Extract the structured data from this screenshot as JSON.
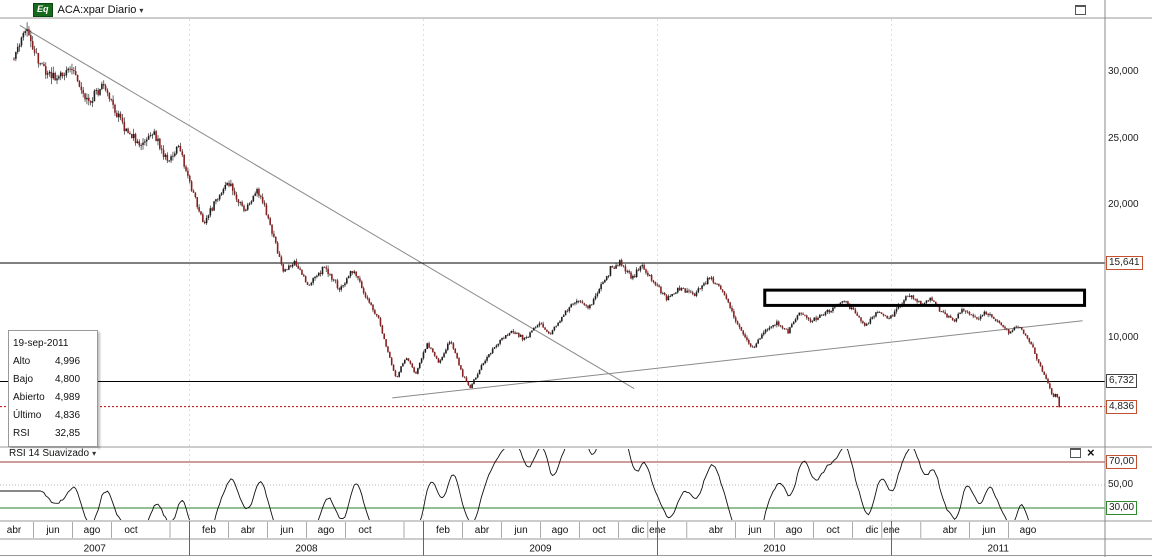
{
  "header": {
    "badge": "Eq",
    "symbol_label": "ACA:xpar Diario"
  },
  "icons": {
    "caret": "▾",
    "close": "×"
  },
  "tooltip": {
    "date": "19-sep-2011",
    "rows": [
      {
        "label": "Alto",
        "value": "4,996"
      },
      {
        "label": "Bajo",
        "value": "4,800"
      },
      {
        "label": "Abierto",
        "value": "4,989"
      },
      {
        "label": "Último",
        "value": "4,836"
      },
      {
        "label": "RSI",
        "value": "32,85"
      }
    ]
  },
  "rsi_panel": {
    "title": "RSI 14 Suavizado"
  },
  "price_axis": {
    "labels": [
      {
        "text": "30,000",
        "value": 30,
        "panel": "price",
        "style": "plain"
      },
      {
        "text": "25,000",
        "value": 25,
        "panel": "price",
        "style": "plain"
      },
      {
        "text": "20,000",
        "value": 20,
        "panel": "price",
        "style": "plain"
      },
      {
        "text": "15,641",
        "value": 15.641,
        "panel": "price",
        "style": "box-red"
      },
      {
        "text": "10,000",
        "value": 10,
        "panel": "price",
        "style": "plain"
      },
      {
        "text": "6,732",
        "value": 6.732,
        "panel": "price",
        "style": "box-black"
      },
      {
        "text": "4,836",
        "value": 4.836,
        "panel": "price",
        "style": "box-red"
      },
      {
        "text": "70,00",
        "value": 70,
        "panel": "rsi",
        "style": "box-red"
      },
      {
        "text": "50,00",
        "value": 50,
        "panel": "rsi",
        "style": "plain"
      },
      {
        "text": "30,00",
        "value": 30,
        "panel": "rsi",
        "style": "box-green"
      }
    ]
  },
  "x_axis": {
    "months": [
      {
        "m": 0,
        "label": "abr"
      },
      {
        "m": 2,
        "label": "jun"
      },
      {
        "m": 4,
        "label": "ago"
      },
      {
        "m": 6,
        "label": "oct"
      },
      {
        "m": 10,
        "label": "feb"
      },
      {
        "m": 12,
        "label": "abr"
      },
      {
        "m": 14,
        "label": "jun"
      },
      {
        "m": 16,
        "label": "ago"
      },
      {
        "m": 18,
        "label": "oct"
      },
      {
        "m": 22,
        "label": "feb"
      },
      {
        "m": 24,
        "label": "abr"
      },
      {
        "m": 26,
        "label": "jun"
      },
      {
        "m": 28,
        "label": "ago"
      },
      {
        "m": 30,
        "label": "oct"
      },
      {
        "m": 32,
        "label": "dic"
      },
      {
        "m": 33,
        "label": "ene"
      },
      {
        "m": 36,
        "label": "abr"
      },
      {
        "m": 38,
        "label": "jun"
      },
      {
        "m": 40,
        "label": "ago"
      },
      {
        "m": 42,
        "label": "oct"
      },
      {
        "m": 44,
        "label": "dic"
      },
      {
        "m": 45,
        "label": "ene"
      },
      {
        "m": 48,
        "label": "abr"
      },
      {
        "m": 50,
        "label": "jun"
      },
      {
        "m": 52,
        "label": "ago"
      }
    ],
    "years": [
      "2007",
      "2008",
      "2009",
      "2010",
      "2011"
    ]
  },
  "chart_data": {
    "type": "candlestick",
    "title": "ACA:xpar Diario",
    "x_unit": "months since abr-2007",
    "m_max": 53.6,
    "ylim": [
      2.2,
      34
    ],
    "visible_range": {
      "start": "abr 2007",
      "end": "19-sep-2011"
    },
    "price_anchors": [
      [
        0,
        31
      ],
      [
        0.5,
        33.3
      ],
      [
        1.2,
        30.8
      ],
      [
        2.2,
        29.2
      ],
      [
        3,
        30.4
      ],
      [
        3.8,
        27.6
      ],
      [
        4.6,
        29
      ],
      [
        5.5,
        26.2
      ],
      [
        6.5,
        24.4
      ],
      [
        7.1,
        25.6
      ],
      [
        7.9,
        23.2
      ],
      [
        8.4,
        24.4
      ],
      [
        9.2,
        20.8
      ],
      [
        9.7,
        18.6
      ],
      [
        10.3,
        20.2
      ],
      [
        11,
        21.6
      ],
      [
        11.8,
        19.6
      ],
      [
        12.5,
        21.2
      ],
      [
        13.2,
        18.2
      ],
      [
        13.8,
        14.9
      ],
      [
        14.4,
        15.8
      ],
      [
        15.1,
        13.9
      ],
      [
        15.9,
        15.3
      ],
      [
        16.7,
        13.7
      ],
      [
        17.4,
        15.1
      ],
      [
        18.1,
        12.9
      ],
      [
        18.7,
        11.4
      ],
      [
        19.2,
        8.8
      ],
      [
        19.6,
        7
      ],
      [
        20.1,
        8.6
      ],
      [
        20.6,
        7.3
      ],
      [
        21.2,
        9.6
      ],
      [
        21.8,
        8.1
      ],
      [
        22.4,
        9.9
      ],
      [
        23,
        7.2
      ],
      [
        23.4,
        6.3
      ],
      [
        24,
        8
      ],
      [
        24.8,
        9.6
      ],
      [
        25.5,
        10.6
      ],
      [
        26.2,
        9.9
      ],
      [
        26.9,
        11.1
      ],
      [
        27.5,
        10.3
      ],
      [
        28.2,
        11.8
      ],
      [
        28.9,
        13
      ],
      [
        29.5,
        12.3
      ],
      [
        30.1,
        13.8
      ],
      [
        30.6,
        15.2
      ],
      [
        31.1,
        15.7
      ],
      [
        31.7,
        14.5
      ],
      [
        32.2,
        15.4
      ],
      [
        32.8,
        14.3
      ],
      [
        33.5,
        12.9
      ],
      [
        34.2,
        13.8
      ],
      [
        34.9,
        13.2
      ],
      [
        35.7,
        14.6
      ],
      [
        36.4,
        13.4
      ],
      [
        36.9,
        11.6
      ],
      [
        37.4,
        10.2
      ],
      [
        37.9,
        9.2
      ],
      [
        38.5,
        10.6
      ],
      [
        39.1,
        11.1
      ],
      [
        39.7,
        10.5
      ],
      [
        40.3,
        11.9
      ],
      [
        40.9,
        11.3
      ],
      [
        41.5,
        11.8
      ],
      [
        42.1,
        12.3
      ],
      [
        42.6,
        12.8
      ],
      [
        43.2,
        11.8
      ],
      [
        43.7,
        10.9
      ],
      [
        44.3,
        12
      ],
      [
        44.9,
        11.4
      ],
      [
        45.4,
        12.4
      ],
      [
        45.9,
        13.2
      ],
      [
        46.5,
        12.5
      ],
      [
        47,
        12.9
      ],
      [
        47.6,
        11.9
      ],
      [
        48.2,
        11.3
      ],
      [
        48.7,
        12.2
      ],
      [
        49.3,
        11.5
      ],
      [
        49.9,
        11.9
      ],
      [
        50.5,
        11.2
      ],
      [
        51,
        10.4
      ],
      [
        51.5,
        10.9
      ],
      [
        52,
        10
      ],
      [
        52.4,
        8.7
      ],
      [
        52.8,
        7.3
      ],
      [
        53.1,
        6.3
      ],
      [
        53.3,
        5.5
      ],
      [
        53.45,
        5.9
      ],
      [
        53.6,
        4.84
      ]
    ],
    "year_boundaries_m": [
      9,
      21,
      33,
      45
    ],
    "levels": [
      {
        "value": 15.641,
        "label": "15,641",
        "style": "solid-black"
      },
      {
        "value": 6.732,
        "label": "6,732",
        "style": "solid-black"
      },
      {
        "value": 4.836,
        "label": "4,836",
        "style": "dotted-red"
      }
    ],
    "trendlines": [
      {
        "from": [
          0.3,
          33.5
        ],
        "to": [
          31.8,
          6.2
        ]
      },
      {
        "from": [
          19.4,
          5.5
        ],
        "to": [
          54.8,
          11.3
        ]
      }
    ],
    "rectangle": {
      "m1": 38.5,
      "m2": 54.9,
      "p_top": 13.6,
      "p_bottom": 12.45
    },
    "rsi": {
      "period": 14,
      "smoothed": true,
      "overbought": 70,
      "midline": 50,
      "oversold": 30,
      "last": 32.85
    }
  }
}
